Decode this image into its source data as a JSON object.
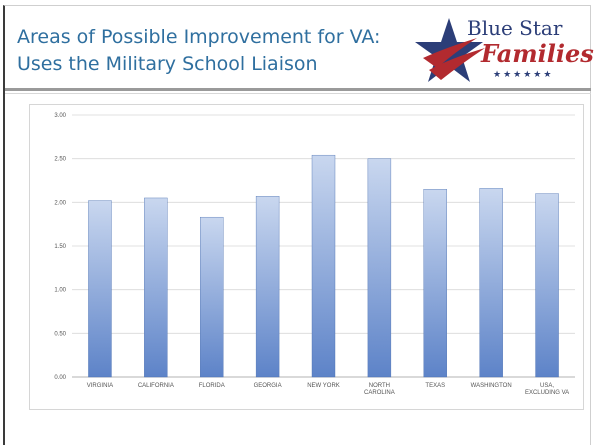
{
  "slide": {
    "title_line1": "Areas of Possible Improvement for VA:",
    "title_line2": "Uses the Military School Liaison"
  },
  "logo": {
    "line1": "Blue Star",
    "line2": "Families",
    "stars": "★★★★★★",
    "colors": {
      "blue": "#2c3e78",
      "red": "#b22a2f"
    },
    "icon": "star-icon"
  },
  "chart_data": {
    "type": "bar",
    "categories": [
      "VIRGINIA",
      "CALIFORNIA",
      "FLORIDA",
      "GEORGIA",
      "NEW YORK",
      "NORTH CAROLINA",
      "TEXAS",
      "WASHINGTON",
      "USA, EXCLUDING VA"
    ],
    "category_lines": [
      [
        "VIRGINIA"
      ],
      [
        "CALIFORNIA"
      ],
      [
        "FLORIDA"
      ],
      [
        "GEORGIA"
      ],
      [
        "NEW YORK"
      ],
      [
        "NORTH",
        "CAROLINA"
      ],
      [
        "TEXAS"
      ],
      [
        "WASHINGTON"
      ],
      [
        "USA,",
        "EXCLUDING VA"
      ]
    ],
    "values": [
      2.02,
      2.05,
      1.83,
      2.07,
      2.54,
      2.5,
      2.15,
      2.16,
      2.1
    ],
    "yticks": [
      "0.00",
      "0.50",
      "1.00",
      "1.50",
      "2.00",
      "2.50",
      "3.00"
    ],
    "ylim": [
      0,
      3
    ],
    "grid": true,
    "bar_color_top": "#c9d7ef",
    "bar_color_bottom": "#5d83c8"
  }
}
